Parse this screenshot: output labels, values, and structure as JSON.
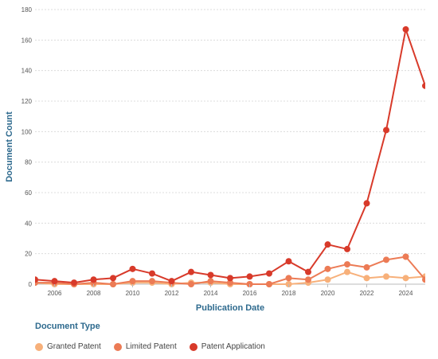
{
  "chart_data": {
    "type": "line",
    "title": "",
    "xlabel": "Publication Date",
    "ylabel": "Document Count",
    "xlim": [
      2005,
      2025
    ],
    "ylim": [
      0,
      180
    ],
    "x_ticks": [
      2006,
      2008,
      2010,
      2012,
      2014,
      2016,
      2018,
      2020,
      2022,
      2024
    ],
    "y_ticks": [
      0,
      20,
      40,
      60,
      80,
      100,
      120,
      140,
      160,
      180
    ],
    "grid": true,
    "legend_title": "Document Type",
    "legend_position": "bottom-left",
    "x": [
      2005,
      2006,
      2007,
      2008,
      2009,
      2010,
      2011,
      2012,
      2013,
      2014,
      2015,
      2016,
      2017,
      2018,
      2019,
      2020,
      2021,
      2022,
      2023,
      2024,
      2025
    ],
    "series": [
      {
        "name": "Granted Patent",
        "color": "#f7b07a",
        "values": [
          1,
          0,
          0,
          0,
          0,
          1,
          1,
          0,
          1,
          1,
          0,
          0,
          0,
          0,
          1,
          3,
          8,
          4,
          5,
          4,
          5
        ]
      },
      {
        "name": "Limited Patent",
        "color": "#ec7b55",
        "values": [
          1,
          1,
          0,
          1,
          0,
          2,
          2,
          1,
          0,
          2,
          1,
          0,
          0,
          4,
          3,
          10,
          13,
          11,
          16,
          18,
          3
        ]
      },
      {
        "name": "Patent Application",
        "color": "#d83a2a",
        "values": [
          3,
          2,
          1,
          3,
          4,
          10,
          7,
          2,
          8,
          6,
          4,
          5,
          7,
          15,
          8,
          26,
          23,
          53,
          101,
          167,
          130
        ]
      }
    ]
  }
}
